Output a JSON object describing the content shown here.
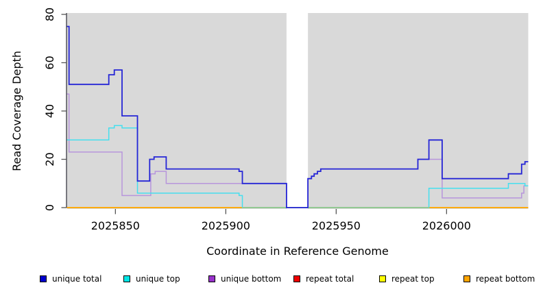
{
  "figure": {
    "background": "#ffffff",
    "plot_background": "#d9d9d9",
    "axis_line_color": "#3a3a44",
    "tick_color": "#555555",
    "text_color": "#000000"
  },
  "chart_data": {
    "type": "line",
    "step": true,
    "title": "",
    "xlabel": "Coordinate in Reference Genome",
    "ylabel": "Read Coverage Depth",
    "xlim": [
      2025828,
      2026037
    ],
    "ylim": [
      0,
      80
    ],
    "x_ticks": [
      2025850,
      2025900,
      2025950,
      2026000
    ],
    "y_ticks": [
      0,
      20,
      40,
      60,
      80
    ],
    "grid": false,
    "legend_position": "bottom",
    "gap_region": {
      "x_start": 2025927.5,
      "x_end": 2025937.2,
      "note": "white band, no coverage data"
    },
    "series": [
      {
        "name": "unique total",
        "color": "#0000CD",
        "line_color": "#2525D6",
        "points": [
          [
            2025828,
            75
          ],
          [
            2025829,
            51
          ],
          [
            2025847,
            55
          ],
          [
            2025849.5,
            57
          ],
          [
            2025853,
            38
          ],
          [
            2025860,
            11
          ],
          [
            2025865.5,
            20
          ],
          [
            2025867.5,
            21
          ],
          [
            2025873,
            16
          ],
          [
            2025906,
            15
          ],
          [
            2025907.5,
            10
          ],
          [
            2025927.5,
            0
          ],
          [
            2025937.2,
            12
          ],
          [
            2025938.8,
            13
          ],
          [
            2025940,
            14
          ],
          [
            2025941.5,
            15
          ],
          [
            2025943,
            16
          ],
          [
            2025987,
            20
          ],
          [
            2025992,
            28
          ],
          [
            2025998,
            12
          ],
          [
            2026028,
            14
          ],
          [
            2026034,
            18
          ],
          [
            2026035.5,
            19
          ]
        ]
      },
      {
        "name": "unique top",
        "color": "#00E5E5",
        "line_color": "#45DFEE",
        "points": [
          [
            2025828,
            28
          ],
          [
            2025847,
            33
          ],
          [
            2025849.5,
            34
          ],
          [
            2025853,
            33
          ],
          [
            2025860,
            6
          ],
          [
            2025906,
            5
          ],
          [
            2025907.5,
            0
          ],
          [
            2025992,
            8
          ],
          [
            2026028,
            10
          ],
          [
            2026035.5,
            9
          ]
        ]
      },
      {
        "name": "unique bottom",
        "color": "#9933CC",
        "line_color": "#B795DC",
        "points": [
          [
            2025828,
            47
          ],
          [
            2025829,
            23
          ],
          [
            2025853,
            5
          ],
          [
            2025866,
            14
          ],
          [
            2025868,
            15
          ],
          [
            2025873,
            10
          ],
          [
            2025927.5,
            0
          ],
          [
            2025937.2,
            12
          ],
          [
            2025938.8,
            13
          ],
          [
            2025940,
            14
          ],
          [
            2025941.5,
            15
          ],
          [
            2025943,
            16
          ],
          [
            2025987,
            20
          ],
          [
            2025998,
            4
          ],
          [
            2026034,
            6
          ],
          [
            2026035,
            9
          ]
        ]
      },
      {
        "name": "repeat total",
        "color": "#EE0000",
        "line_color": "#EE0000",
        "points": [
          [
            2025828,
            0
          ]
        ]
      },
      {
        "name": "repeat top",
        "color": "#FFFF00",
        "line_color": "#FFFF00",
        "points": [
          [
            2025828,
            0
          ]
        ]
      },
      {
        "name": "repeat bottom",
        "color": "#FFA500",
        "line_color": "#FFA500",
        "points": [
          [
            2025828,
            0
          ]
        ]
      }
    ],
    "overlap_segment": {
      "color": "#8DC996",
      "x_start": 2025907.5,
      "x_end": 2025992,
      "y": 0,
      "note": "cyan line at 0 drawn over orange renders pale green"
    }
  }
}
